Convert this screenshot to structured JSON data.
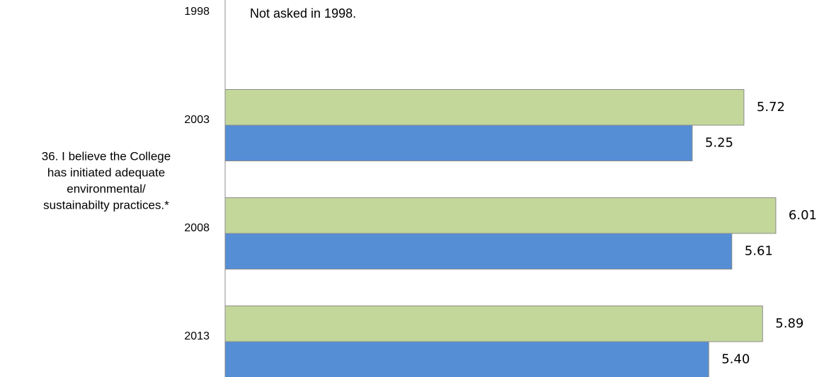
{
  "chart_data": {
    "type": "bar",
    "orientation": "horizontal",
    "group_label": [
      "36. I believe the College",
      "has initiated adequate",
      "environmental/",
      "sustainabilty practices.*"
    ],
    "annotation": "Not asked in 1998.",
    "categories": [
      "1998",
      "2003",
      "2008",
      "2013"
    ],
    "series": [
      {
        "color": "#c4d79b",
        "values": [
          null,
          5.72,
          6.01,
          5.89
        ],
        "value_labels": [
          null,
          "5.72",
          "6.01",
          "5.89"
        ]
      },
      {
        "color": "#558ed5",
        "values": [
          null,
          5.25,
          5.61,
          5.4
        ],
        "value_labels": [
          null,
          "5.25",
          "5.61",
          "5.40"
        ]
      }
    ],
    "xlim": [
      1,
      6.5
    ]
  }
}
